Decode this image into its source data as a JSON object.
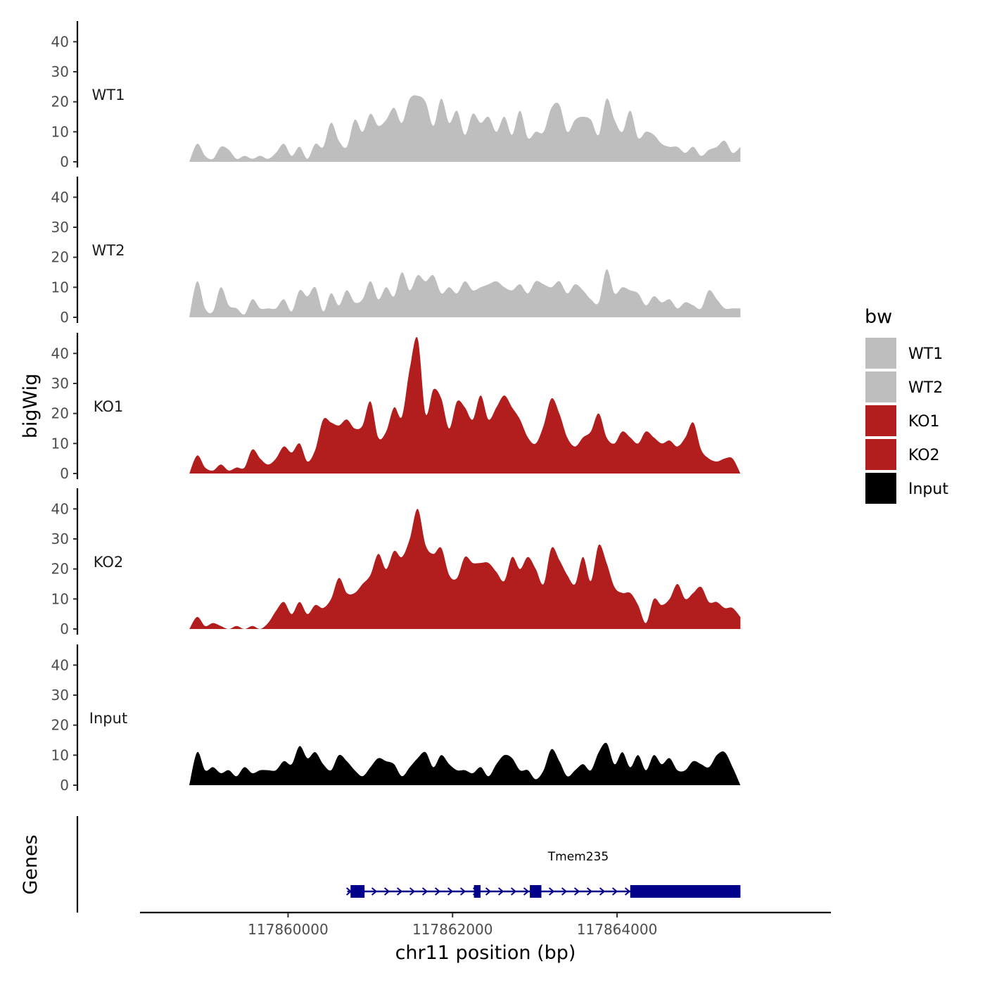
{
  "chart_data": {
    "type": "area",
    "title": "",
    "xlabel": "chr11 position (bp)",
    "ylabel": "bigWig",
    "genes_label": "Genes",
    "x_ticks": [
      {
        "value": 117860000,
        "label": "117860000"
      },
      {
        "value": 117862000,
        "label": "117862000"
      },
      {
        "value": 117864000,
        "label": "117864000"
      }
    ],
    "xlim": [
      117858200,
      117866600
    ],
    "region": [
      117858800,
      117865500
    ],
    "ylim": [
      0,
      45
    ],
    "y_ticks": [
      {
        "value": 0,
        "label": "0"
      },
      {
        "value": 10,
        "label": "10"
      },
      {
        "value": 20,
        "label": "20"
      },
      {
        "value": 30,
        "label": "30"
      },
      {
        "value": 40,
        "label": "40"
      }
    ],
    "legend": {
      "title": "bw",
      "position": "right",
      "entries": [
        {
          "label": "WT1",
          "color": "#bebebe"
        },
        {
          "label": "WT2",
          "color": "#bebebe"
        },
        {
          "label": "KO1",
          "color": "#b21e1e"
        },
        {
          "label": "KO2",
          "color": "#b21e1e"
        },
        {
          "label": "Input",
          "color": "#000000"
        }
      ]
    },
    "series": [
      {
        "name": "WT1",
        "color": "#bebebe",
        "values": [
          0,
          6,
          2,
          1,
          5,
          4,
          1,
          2,
          1,
          2,
          1,
          3,
          6,
          2,
          5,
          1,
          6,
          5,
          13,
          7,
          5,
          14,
          10,
          16,
          12,
          14,
          18,
          13,
          21,
          22,
          20,
          12,
          21,
          13,
          17,
          9,
          16,
          13,
          15,
          10,
          15,
          9,
          17,
          8,
          10,
          10,
          18,
          19,
          10,
          14,
          15,
          14,
          9,
          21,
          14,
          10,
          17,
          8,
          10,
          9,
          6,
          5,
          5,
          3,
          5,
          2,
          4,
          5,
          7,
          3,
          5
        ]
      },
      {
        "name": "WT2",
        "color": "#bebebe",
        "values": [
          0,
          12,
          3,
          2,
          10,
          4,
          3,
          1,
          6,
          3,
          3,
          3,
          6,
          2,
          9,
          7,
          10,
          2,
          8,
          4,
          9,
          5,
          6,
          12,
          6,
          10,
          7,
          15,
          9,
          14,
          12,
          14,
          8,
          10,
          8,
          12,
          9,
          10,
          11,
          12,
          10,
          9,
          11,
          8,
          12,
          11,
          10,
          12,
          8,
          11,
          9,
          6,
          5,
          16,
          8,
          10,
          9,
          8,
          4,
          7,
          5,
          6,
          3,
          5,
          4,
          3,
          9,
          6,
          3,
          3,
          3
        ]
      },
      {
        "name": "KO1",
        "color": "#b21e1e",
        "values": [
          0,
          6,
          2,
          1,
          3,
          1,
          2,
          2,
          8,
          5,
          3,
          5,
          9,
          7,
          10,
          4,
          8,
          18,
          17,
          16,
          18,
          15,
          16,
          24,
          12,
          14,
          22,
          19,
          35,
          45,
          20,
          28,
          25,
          15,
          24,
          22,
          18,
          26,
          18,
          22,
          26,
          22,
          18,
          12,
          10,
          16,
          25,
          20,
          12,
          9,
          12,
          14,
          20,
          12,
          10,
          14,
          12,
          10,
          14,
          12,
          10,
          11,
          9,
          12,
          17,
          8,
          5,
          4,
          5,
          5,
          0
        ]
      },
      {
        "name": "KO2",
        "color": "#b21e1e",
        "values": [
          0,
          4,
          1,
          2,
          1,
          0,
          1,
          0,
          1,
          0,
          2,
          6,
          9,
          5,
          9,
          5,
          8,
          7,
          10,
          17,
          12,
          12,
          15,
          18,
          25,
          20,
          26,
          24,
          30,
          40,
          28,
          25,
          27,
          18,
          17,
          24,
          22,
          22,
          22,
          19,
          16,
          24,
          20,
          24,
          20,
          15,
          27,
          23,
          18,
          15,
          24,
          16,
          28,
          22,
          14,
          12,
          12,
          8,
          2,
          10,
          8,
          10,
          15,
          10,
          12,
          14,
          9,
          9,
          7,
          7,
          4
        ]
      },
      {
        "name": "Input",
        "color": "#000000",
        "values": [
          0,
          11,
          5,
          6,
          4,
          5,
          3,
          6,
          4,
          5,
          5,
          5,
          8,
          7,
          13,
          9,
          11,
          7,
          5,
          10,
          8,
          5,
          3,
          6,
          9,
          8,
          7,
          3,
          6,
          9,
          11,
          6,
          10,
          7,
          5,
          5,
          4,
          6,
          3,
          7,
          10,
          9,
          5,
          5,
          2,
          5,
          12,
          8,
          3,
          5,
          7,
          5,
          11,
          14,
          7,
          11,
          6,
          10,
          5,
          10,
          7,
          9,
          5,
          5,
          8,
          7,
          6,
          10,
          11,
          6,
          0
        ]
      }
    ],
    "genes": [
      {
        "name": "Tmem235",
        "strand": "+",
        "color": "#00008b",
        "start": 117860720,
        "end": 117865500,
        "exons": [
          {
            "start": 117860760,
            "end": 117860930
          },
          {
            "start": 117862260,
            "end": 117862340
          },
          {
            "start": 117862940,
            "end": 117863080
          },
          {
            "start": 117864160,
            "end": 117865500
          }
        ]
      }
    ]
  }
}
